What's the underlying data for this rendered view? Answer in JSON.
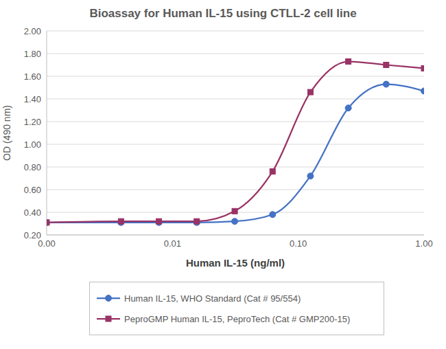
{
  "chart_data": {
    "type": "line",
    "title": "Bioassay for Human IL-15 using CTLL-2 cell line",
    "x_label": "Human IL-15 (ng/ml)",
    "y_label": "OD (490 nm)",
    "x": [
      0.001,
      0.0039,
      0.0078,
      0.0156,
      0.03125,
      0.0625,
      0.125,
      0.25,
      0.5,
      1
    ],
    "series": [
      {
        "name": "Human IL-15, WHO Standard (Cat # 95/554)",
        "color": "#4472c4",
        "marker": "circle",
        "values": [
          0.31,
          0.31,
          0.31,
          0.31,
          0.32,
          0.38,
          0.72,
          1.32,
          1.53,
          1.47
        ]
      },
      {
        "name": "PeproGMP Human IL-15, PeproTech (Cat # GMP200-15)",
        "color": "#993366",
        "marker": "square",
        "values": [
          0.31,
          0.32,
          0.32,
          0.32,
          0.41,
          0.76,
          1.46,
          1.73,
          1.7,
          1.67
        ]
      }
    ],
    "log": "x",
    "xlim": [
      0.001,
      1
    ],
    "xticks": [
      {
        "value": 0.001,
        "label": "0.00"
      },
      {
        "value": 0.01,
        "label": "0.01"
      },
      {
        "value": 0.1,
        "label": "0.10"
      },
      {
        "value": 1,
        "label": "1.00"
      }
    ],
    "ylim": [
      0.2,
      2.0
    ],
    "yticks": [
      {
        "value": 0.2,
        "label": "0.20"
      },
      {
        "value": 0.4,
        "label": "0.40"
      },
      {
        "value": 0.6,
        "label": "0.60"
      },
      {
        "value": 0.8,
        "label": "0.80"
      },
      {
        "value": 1.0,
        "label": "1.00"
      },
      {
        "value": 1.2,
        "label": "1.20"
      },
      {
        "value": 1.4,
        "label": "1.40"
      },
      {
        "value": 1.6,
        "label": "1.60"
      },
      {
        "value": 1.8,
        "label": "1.80"
      },
      {
        "value": 2.0,
        "label": "2.00"
      }
    ],
    "grid": true,
    "legend": "bottom"
  }
}
